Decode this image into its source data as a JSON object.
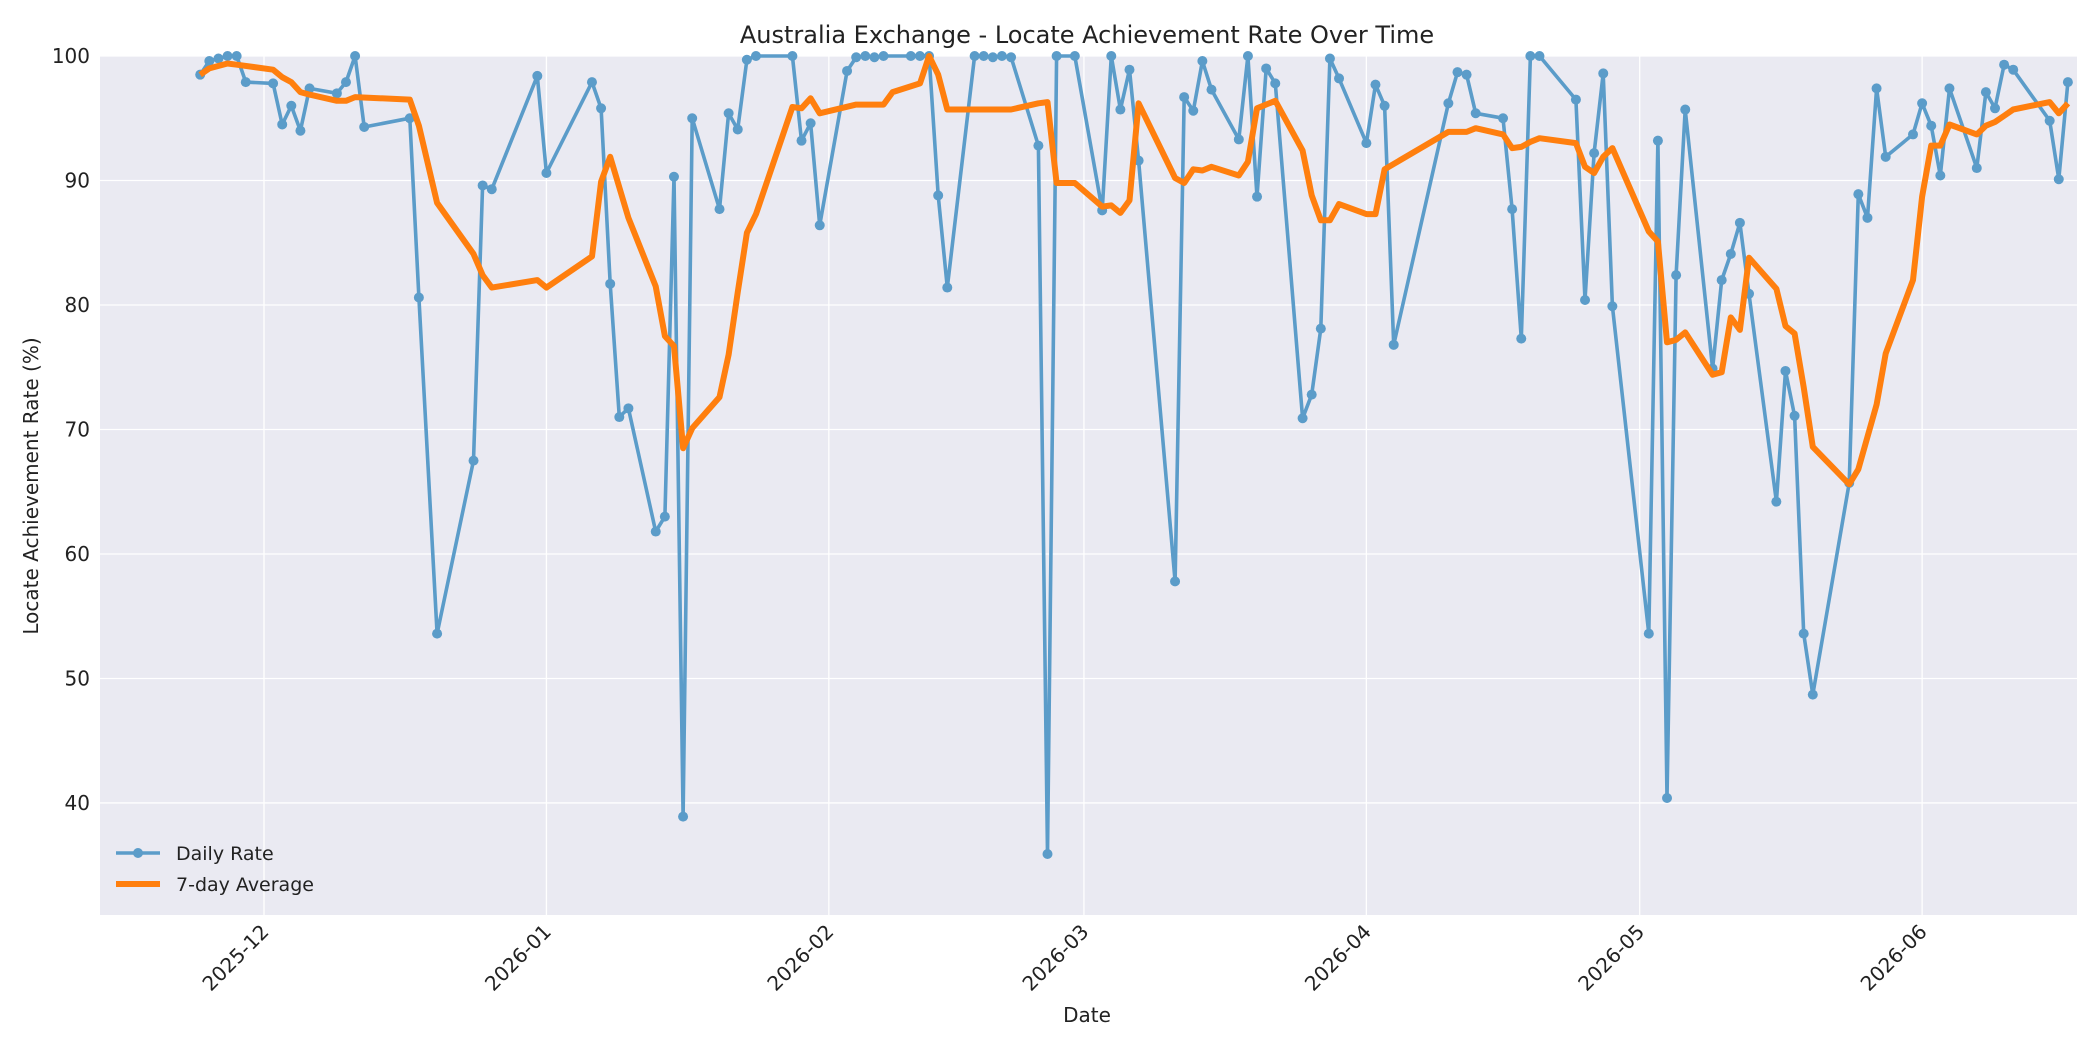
{
  "chart_data": {
    "type": "line",
    "title": "Australia Exchange - Locate Achievement Rate Over Time",
    "xlabel": "Date",
    "ylabel": "Locate Achievement Rate (%)",
    "ylim": [
      31,
      100
    ],
    "xlim": [
      "2025-11-13",
      "2026-06-18"
    ],
    "grid": true,
    "legend_position": "bottom-left",
    "y_ticks": [
      40,
      50,
      60,
      70,
      80,
      90,
      100
    ],
    "x_ticks": [
      "2025-12-01",
      "2026-01-01",
      "2026-02-01",
      "2026-03-01",
      "2026-04-01",
      "2026-05-01",
      "2026-06-01"
    ],
    "x_tick_labels": [
      "2025-12",
      "2026-01",
      "2026-02",
      "2026-03",
      "2026-04",
      "2026-05",
      "2026-06"
    ],
    "colors": {
      "plot_background": "#eaeaf2",
      "grid": "#ffffff",
      "daily": "#5b9cc9",
      "average": "#ff7f0e"
    },
    "series": [
      {
        "name": "Daily Rate",
        "style": "line-with-markers",
        "points": [
          [
            "2025-11-24",
            98.5
          ],
          [
            "2025-11-25",
            99.6
          ],
          [
            "2025-11-26",
            99.8
          ],
          [
            "2025-11-27",
            100
          ],
          [
            "2025-11-28",
            100
          ],
          [
            "2025-11-29",
            97.9
          ],
          [
            "2025-12-02",
            97.8
          ],
          [
            "2025-12-03",
            94.5
          ],
          [
            "2025-12-04",
            96.0
          ],
          [
            "2025-12-05",
            94.0
          ],
          [
            "2025-12-06",
            97.4
          ],
          [
            "2025-12-09",
            97.0
          ],
          [
            "2025-12-10",
            97.9
          ],
          [
            "2025-12-11",
            100
          ],
          [
            "2025-12-12",
            94.3
          ],
          [
            "2025-12-17",
            95.0
          ],
          [
            "2025-12-18",
            80.6
          ],
          [
            "2025-12-20",
            53.6
          ],
          [
            "2025-12-24",
            67.5
          ],
          [
            "2025-12-25",
            89.6
          ],
          [
            "2025-12-26",
            89.3
          ],
          [
            "2025-12-31",
            98.4
          ],
          [
            "2026-01-01",
            90.6
          ],
          [
            "2026-01-06",
            97.9
          ],
          [
            "2026-01-07",
            95.8
          ],
          [
            "2026-01-08",
            81.7
          ],
          [
            "2026-01-09",
            71.0
          ],
          [
            "2026-01-10",
            71.7
          ],
          [
            "2026-01-13",
            61.8
          ],
          [
            "2026-01-14",
            63.0
          ],
          [
            "2026-01-15",
            90.3
          ],
          [
            "2026-01-16",
            38.9
          ],
          [
            "2026-01-17",
            95.0
          ],
          [
            "2026-01-20",
            87.7
          ],
          [
            "2026-01-21",
            95.4
          ],
          [
            "2026-01-22",
            94.1
          ],
          [
            "2026-01-23",
            99.7
          ],
          [
            "2026-01-24",
            100
          ],
          [
            "2026-01-28",
            100
          ],
          [
            "2026-01-29",
            93.2
          ],
          [
            "2026-01-30",
            94.6
          ],
          [
            "2026-01-31",
            86.4
          ],
          [
            "2026-02-03",
            98.8
          ],
          [
            "2026-02-04",
            99.9
          ],
          [
            "2026-02-05",
            100
          ],
          [
            "2026-02-06",
            99.9
          ],
          [
            "2026-02-07",
            100
          ],
          [
            "2026-02-10",
            100
          ],
          [
            "2026-02-11",
            100
          ],
          [
            "2026-02-12",
            100
          ],
          [
            "2026-02-13",
            88.8
          ],
          [
            "2026-02-14",
            81.4
          ],
          [
            "2026-02-17",
            100
          ],
          [
            "2026-02-18",
            100
          ],
          [
            "2026-02-19",
            99.9
          ],
          [
            "2026-02-20",
            100
          ],
          [
            "2026-02-21",
            99.9
          ],
          [
            "2026-02-24",
            92.8
          ],
          [
            "2026-02-25",
            35.9
          ],
          [
            "2026-02-26",
            100
          ],
          [
            "2026-02-28",
            100
          ],
          [
            "2026-03-03",
            87.6
          ],
          [
            "2026-03-04",
            100
          ],
          [
            "2026-03-05",
            95.7
          ],
          [
            "2026-03-06",
            98.9
          ],
          [
            "2026-03-07",
            91.6
          ],
          [
            "2026-03-11",
            57.8
          ],
          [
            "2026-03-12",
            96.7
          ],
          [
            "2026-03-13",
            95.6
          ],
          [
            "2026-03-14",
            99.6
          ],
          [
            "2026-03-15",
            97.3
          ],
          [
            "2026-03-18",
            93.3
          ],
          [
            "2026-03-19",
            100
          ],
          [
            "2026-03-20",
            88.7
          ],
          [
            "2026-03-21",
            99.0
          ],
          [
            "2026-03-22",
            97.8
          ],
          [
            "2026-03-25",
            70.9
          ],
          [
            "2026-03-26",
            72.8
          ],
          [
            "2026-03-27",
            78.1
          ],
          [
            "2026-03-28",
            99.8
          ],
          [
            "2026-03-29",
            98.2
          ],
          [
            "2026-04-01",
            93.0
          ],
          [
            "2026-04-02",
            97.7
          ],
          [
            "2026-04-03",
            96.0
          ],
          [
            "2026-04-04",
            76.8
          ],
          [
            "2026-04-10",
            96.2
          ],
          [
            "2026-04-11",
            98.7
          ],
          [
            "2026-04-12",
            98.5
          ],
          [
            "2026-04-13",
            95.4
          ],
          [
            "2026-04-16",
            95.0
          ],
          [
            "2026-04-17",
            87.7
          ],
          [
            "2026-04-18",
            77.3
          ],
          [
            "2026-04-19",
            100
          ],
          [
            "2026-04-20",
            100
          ],
          [
            "2026-04-24",
            96.5
          ],
          [
            "2026-04-25",
            80.4
          ],
          [
            "2026-04-26",
            92.2
          ],
          [
            "2026-04-27",
            98.6
          ],
          [
            "2026-04-28",
            79.9
          ],
          [
            "2026-05-02",
            53.6
          ],
          [
            "2026-05-03",
            93.2
          ],
          [
            "2026-05-04",
            40.4
          ],
          [
            "2026-05-05",
            82.4
          ],
          [
            "2026-05-06",
            95.7
          ],
          [
            "2026-05-09",
            74.9
          ],
          [
            "2026-05-10",
            82.0
          ],
          [
            "2026-05-11",
            84.1
          ],
          [
            "2026-05-12",
            86.6
          ],
          [
            "2026-05-13",
            80.9
          ],
          [
            "2026-05-16",
            64.2
          ],
          [
            "2026-05-17",
            74.7
          ],
          [
            "2026-05-18",
            71.1
          ],
          [
            "2026-05-19",
            53.6
          ],
          [
            "2026-05-20",
            48.7
          ],
          [
            "2026-05-24",
            65.7
          ],
          [
            "2026-05-25",
            88.9
          ],
          [
            "2026-05-26",
            87.0
          ],
          [
            "2026-05-27",
            97.4
          ],
          [
            "2026-05-28",
            91.9
          ],
          [
            "2026-05-31",
            93.7
          ],
          [
            "2026-06-01",
            96.2
          ],
          [
            "2026-06-02",
            94.4
          ],
          [
            "2026-06-03",
            90.4
          ],
          [
            "2026-06-04",
            97.4
          ],
          [
            "2026-06-07",
            91.0
          ],
          [
            "2026-06-08",
            97.1
          ],
          [
            "2026-06-09",
            95.8
          ],
          [
            "2026-06-10",
            99.3
          ],
          [
            "2026-06-11",
            98.9
          ],
          [
            "2026-06-15",
            94.8
          ],
          [
            "2026-06-16",
            90.1
          ],
          [
            "2026-06-17",
            97.9
          ]
        ]
      },
      {
        "name": "7-day Average",
        "style": "thick-line",
        "points": [
          [
            "2025-11-24",
            98.5
          ],
          [
            "2025-11-25",
            99.0
          ],
          [
            "2025-11-27",
            99.4
          ],
          [
            "2025-11-28",
            99.3
          ],
          [
            "2025-12-02",
            98.9
          ],
          [
            "2025-12-03",
            98.3
          ],
          [
            "2025-12-04",
            97.9
          ],
          [
            "2025-12-05",
            97.1
          ],
          [
            "2025-12-06",
            96.9
          ],
          [
            "2025-12-09",
            96.4
          ],
          [
            "2025-12-10",
            96.4
          ],
          [
            "2025-12-11",
            96.7
          ],
          [
            "2025-12-17",
            96.5
          ],
          [
            "2025-12-18",
            94.4
          ],
          [
            "2025-12-20",
            88.2
          ],
          [
            "2025-12-24",
            84.1
          ],
          [
            "2025-12-25",
            82.4
          ],
          [
            "2025-12-26",
            81.4
          ],
          [
            "2025-12-31",
            82.0
          ],
          [
            "2026-01-01",
            81.4
          ],
          [
            "2026-01-06",
            83.9
          ],
          [
            "2026-01-07",
            89.9
          ],
          [
            "2026-01-08",
            91.9
          ],
          [
            "2026-01-10",
            87.0
          ],
          [
            "2026-01-13",
            81.5
          ],
          [
            "2026-01-14",
            77.5
          ],
          [
            "2026-01-15",
            76.7
          ],
          [
            "2026-01-16",
            68.5
          ],
          [
            "2026-01-17",
            70.1
          ],
          [
            "2026-01-20",
            72.6
          ],
          [
            "2026-01-21",
            76.0
          ],
          [
            "2026-01-22",
            81.0
          ],
          [
            "2026-01-23",
            85.8
          ],
          [
            "2026-01-24",
            87.3
          ],
          [
            "2026-01-28",
            95.9
          ],
          [
            "2026-01-29",
            95.8
          ],
          [
            "2026-01-30",
            96.6
          ],
          [
            "2026-01-31",
            95.4
          ],
          [
            "2026-02-04",
            96.1
          ],
          [
            "2026-02-07",
            96.1
          ],
          [
            "2026-02-08",
            97.1
          ],
          [
            "2026-02-11",
            97.8
          ],
          [
            "2026-02-12",
            100
          ],
          [
            "2026-02-13",
            98.5
          ],
          [
            "2026-02-14",
            95.7
          ],
          [
            "2026-02-21",
            95.7
          ],
          [
            "2026-02-24",
            96.2
          ],
          [
            "2026-02-25",
            96.3
          ],
          [
            "2026-02-26",
            89.8
          ],
          [
            "2026-02-28",
            89.8
          ],
          [
            "2026-03-03",
            87.9
          ],
          [
            "2026-03-04",
            88.0
          ],
          [
            "2026-03-05",
            87.4
          ],
          [
            "2026-03-06",
            88.4
          ],
          [
            "2026-03-07",
            96.2
          ],
          [
            "2026-03-11",
            90.2
          ],
          [
            "2026-03-12",
            89.8
          ],
          [
            "2026-03-13",
            90.9
          ],
          [
            "2026-03-14",
            90.8
          ],
          [
            "2026-03-15",
            91.1
          ],
          [
            "2026-03-18",
            90.4
          ],
          [
            "2026-03-19",
            91.5
          ],
          [
            "2026-03-20",
            95.8
          ],
          [
            "2026-03-22",
            96.4
          ],
          [
            "2026-03-25",
            92.4
          ],
          [
            "2026-03-26",
            88.8
          ],
          [
            "2026-03-27",
            86.8
          ],
          [
            "2026-03-28",
            86.8
          ],
          [
            "2026-03-29",
            88.1
          ],
          [
            "2026-04-01",
            87.3
          ],
          [
            "2026-04-02",
            87.3
          ],
          [
            "2026-04-03",
            90.9
          ],
          [
            "2026-04-10",
            93.9
          ],
          [
            "2026-04-11",
            93.9
          ],
          [
            "2026-04-12",
            93.9
          ],
          [
            "2026-04-13",
            94.2
          ],
          [
            "2026-04-16",
            93.7
          ],
          [
            "2026-04-17",
            92.6
          ],
          [
            "2026-04-18",
            92.7
          ],
          [
            "2026-04-19",
            93.1
          ],
          [
            "2026-04-20",
            93.4
          ],
          [
            "2026-04-24",
            93.0
          ],
          [
            "2026-04-25",
            91.1
          ],
          [
            "2026-04-26",
            90.6
          ],
          [
            "2026-04-27",
            91.9
          ],
          [
            "2026-04-28",
            92.6
          ],
          [
            "2026-05-02",
            85.9
          ],
          [
            "2026-05-03",
            85.1
          ],
          [
            "2026-05-04",
            77.0
          ],
          [
            "2026-05-05",
            77.2
          ],
          [
            "2026-05-06",
            77.8
          ],
          [
            "2026-05-09",
            74.4
          ],
          [
            "2026-05-10",
            74.6
          ],
          [
            "2026-05-11",
            79.0
          ],
          [
            "2026-05-12",
            78.0
          ],
          [
            "2026-05-13",
            83.8
          ],
          [
            "2026-05-16",
            81.3
          ],
          [
            "2026-05-17",
            78.3
          ],
          [
            "2026-05-18",
            77.7
          ],
          [
            "2026-05-19",
            73.4
          ],
          [
            "2026-05-20",
            68.6
          ],
          [
            "2026-05-24",
            65.6
          ],
          [
            "2026-05-25",
            66.8
          ],
          [
            "2026-05-27",
            72.0
          ],
          [
            "2026-05-28",
            76.1
          ],
          [
            "2026-05-31",
            82.0
          ],
          [
            "2026-06-01",
            88.7
          ],
          [
            "2026-06-02",
            92.8
          ],
          [
            "2026-06-03",
            92.8
          ],
          [
            "2026-06-04",
            94.5
          ],
          [
            "2026-06-07",
            93.7
          ],
          [
            "2026-06-08",
            94.4
          ],
          [
            "2026-06-09",
            94.7
          ],
          [
            "2026-06-10",
            95.2
          ],
          [
            "2026-06-11",
            95.7
          ],
          [
            "2026-06-15",
            96.3
          ],
          [
            "2026-06-16",
            95.4
          ],
          [
            "2026-06-17",
            96.2
          ]
        ]
      }
    ]
  }
}
